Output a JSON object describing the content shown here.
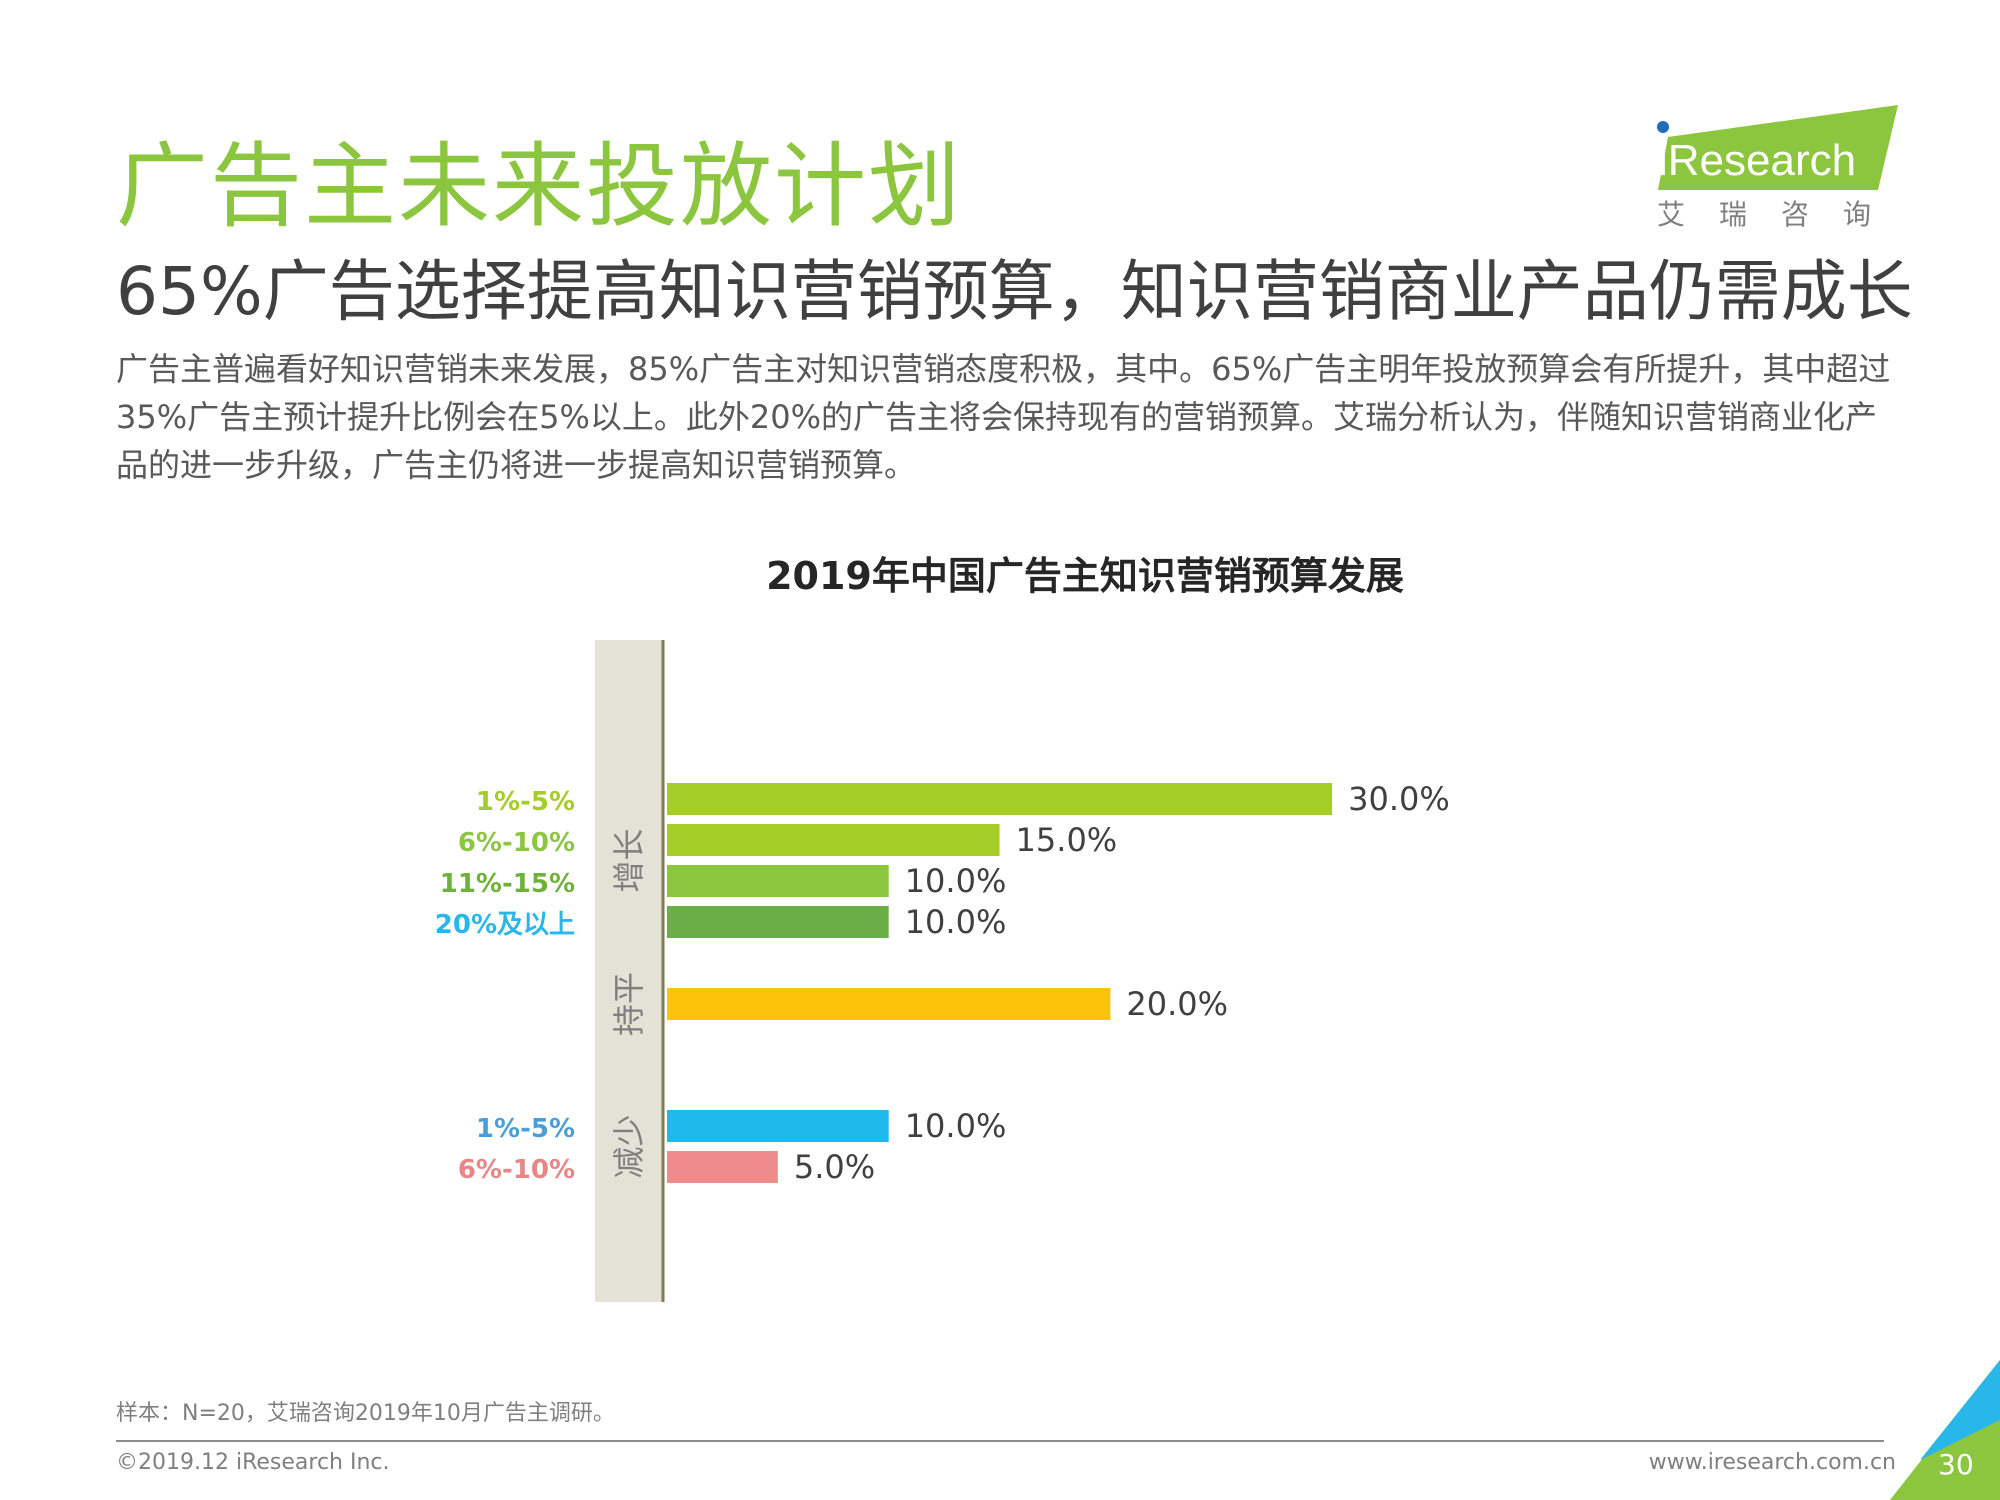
{
  "header": {
    "title": "广告主未来投放计划",
    "subtitle": "65%广告选择提高知识营销预算，知识营销商业产品仍需成长",
    "body": "广告主普遍看好知识营销未来发展，85%广告主对知识营销态度积极，其中。65%广告主明年投放预算会有所提升，其中超过35%广告主预计提升比例会在5%以上。此外20%的广告主将会保持现有的营销预算。艾瑞分析认为，伴随知识营销商业化产品的进一步升级，广告主仍将进一步提高知识营销预算。"
  },
  "logo": {
    "text": "iResearch",
    "cn": "艾瑞咨询",
    "color": "#8cc63f"
  },
  "chart_data": {
    "type": "bar",
    "orientation": "horizontal",
    "title": "2019年中国广告主知识营销预算发展",
    "groups": [
      {
        "name": "增长",
        "bars": [
          {
            "label": "1%-5%",
            "value": 30.0,
            "value_label": "30.0%",
            "color": "#a5cd28",
            "label_color": "#a5cd28"
          },
          {
            "label": "6%-10%",
            "value": 15.0,
            "value_label": "15.0%",
            "color": "#a5cd28",
            "label_color": "#8cc63f"
          },
          {
            "label": "11%-15%",
            "value": 10.0,
            "value_label": "10.0%",
            "color": "#8cc63f",
            "label_color": "#6fb23a"
          },
          {
            "label": "20%及以上",
            "value": 10.0,
            "value_label": "10.0%",
            "color": "#6aaf45",
            "label_color": "#29b6e8"
          }
        ]
      },
      {
        "name": "持平",
        "bars": [
          {
            "label": "",
            "value": 20.0,
            "value_label": "20.0%",
            "color": "#fcc30b",
            "label_color": "#fcc30b"
          }
        ]
      },
      {
        "name": "减少",
        "bars": [
          {
            "label": "1%-5%",
            "value": 10.0,
            "value_label": "10.0%",
            "color": "#1fb8ea",
            "label_color": "#4a9fd8"
          },
          {
            "label": "6%-10%",
            "value": 5.0,
            "value_label": "5.0%",
            "color": "#ef8b8b",
            "label_color": "#e98585"
          }
        ]
      }
    ],
    "grid": false,
    "legend": "none"
  },
  "footer": {
    "source": "样本：N=20，艾瑞咨询2019年10月广告主调研。",
    "copyright": "©2019.12 iResearch Inc.",
    "website": "www.iresearch.com.cn",
    "page": "30"
  }
}
